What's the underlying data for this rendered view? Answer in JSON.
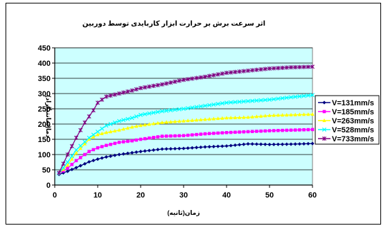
{
  "chart_data": {
    "type": "line",
    "title": "اثر سرعت برش بر حرارت ابزار کاربایدی توسط دوربین",
    "xlabel": "زمان(ثانیه)",
    "ylabel": "دما(سانتیگراد)",
    "xlim": [
      0,
      60
    ],
    "ylim": [
      0,
      450
    ],
    "x_ticks": [
      "0",
      "10",
      "20",
      "30",
      "40",
      "50",
      "60"
    ],
    "y_ticks": [
      "0",
      "50",
      "100",
      "150",
      "200",
      "250",
      "300",
      "350",
      "400",
      "450"
    ],
    "grid": "horizontal",
    "plot_background": "#ccffff",
    "legend_position": "right",
    "series": [
      {
        "name": "V=131mm/s",
        "color": "#000080",
        "marker": "diamond",
        "points": [
          [
            1,
            35
          ],
          [
            3,
            45
          ],
          [
            5,
            57
          ],
          [
            8,
            76
          ],
          [
            10,
            85
          ],
          [
            12,
            92
          ],
          [
            15,
            100
          ],
          [
            18,
            106
          ],
          [
            20,
            110
          ],
          [
            25,
            118
          ],
          [
            30,
            120
          ],
          [
            35,
            125
          ],
          [
            40,
            128
          ],
          [
            45,
            135
          ],
          [
            50,
            133
          ],
          [
            55,
            134
          ],
          [
            60,
            136
          ]
        ]
      },
      {
        "name": "V=185mm/s",
        "color": "#ff00ff",
        "marker": "square",
        "points": [
          [
            1,
            38
          ],
          [
            3,
            55
          ],
          [
            5,
            80
          ],
          [
            8,
            110
          ],
          [
            10,
            122
          ],
          [
            12,
            130
          ],
          [
            15,
            140
          ],
          [
            18,
            145
          ],
          [
            20,
            150
          ],
          [
            25,
            160
          ],
          [
            30,
            162
          ],
          [
            35,
            168
          ],
          [
            40,
            172
          ],
          [
            45,
            175
          ],
          [
            50,
            178
          ],
          [
            55,
            180
          ],
          [
            60,
            182
          ]
        ]
      },
      {
        "name": "V=263mm/s",
        "color": "#ffff00",
        "marker": "triangle",
        "points": [
          [
            1,
            38
          ],
          [
            3,
            65
          ],
          [
            5,
            105
          ],
          [
            8,
            150
          ],
          [
            10,
            165
          ],
          [
            12,
            172
          ],
          [
            15,
            180
          ],
          [
            18,
            190
          ],
          [
            20,
            195
          ],
          [
            25,
            205
          ],
          [
            30,
            210
          ],
          [
            35,
            215
          ],
          [
            40,
            220
          ],
          [
            45,
            222
          ],
          [
            50,
            228
          ],
          [
            55,
            230
          ],
          [
            60,
            232
          ]
        ]
      },
      {
        "name": "V=528mm/s",
        "color": "#00ffff",
        "marker": "x",
        "points": [
          [
            1,
            38
          ],
          [
            3,
            75
          ],
          [
            5,
            115
          ],
          [
            8,
            155
          ],
          [
            10,
            175
          ],
          [
            12,
            195
          ],
          [
            15,
            210
          ],
          [
            18,
            220
          ],
          [
            20,
            230
          ],
          [
            25,
            242
          ],
          [
            30,
            250
          ],
          [
            35,
            260
          ],
          [
            40,
            270
          ],
          [
            45,
            275
          ],
          [
            50,
            280
          ],
          [
            55,
            288
          ],
          [
            60,
            295
          ]
        ]
      },
      {
        "name": "V=733mm/s",
        "color": "#800080",
        "marker": "star",
        "points": [
          [
            1,
            40
          ],
          [
            3,
            100
          ],
          [
            5,
            155
          ],
          [
            7,
            205
          ],
          [
            9,
            245
          ],
          [
            10,
            270
          ],
          [
            12,
            290
          ],
          [
            15,
            300
          ],
          [
            18,
            310
          ],
          [
            20,
            318
          ],
          [
            25,
            330
          ],
          [
            30,
            345
          ],
          [
            35,
            355
          ],
          [
            40,
            368
          ],
          [
            45,
            375
          ],
          [
            50,
            382
          ],
          [
            55,
            386
          ],
          [
            60,
            388
          ]
        ]
      }
    ]
  }
}
